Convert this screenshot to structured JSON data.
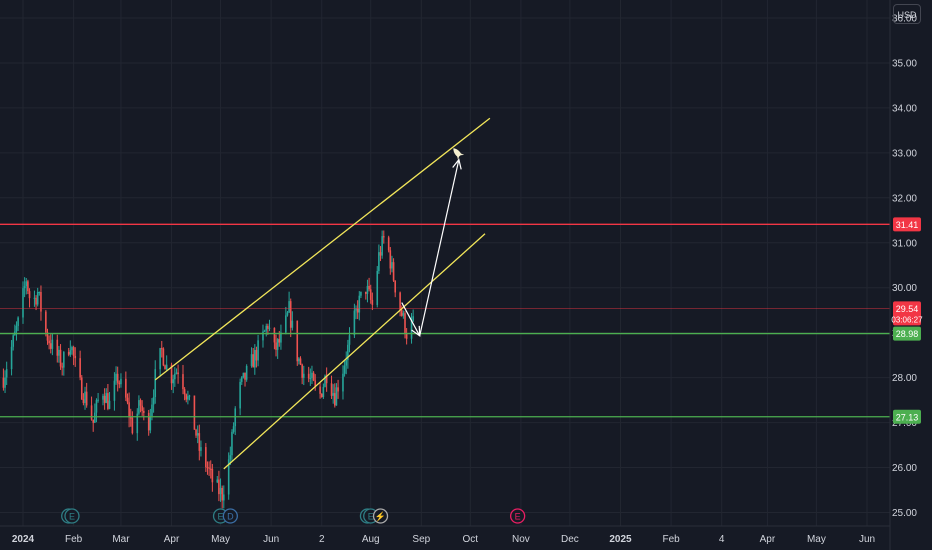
{
  "currency": "USD",
  "colors": {
    "background": "#161a25",
    "grid": "#222631",
    "up": "#26a69a",
    "down": "#ef5350",
    "trendline": "#f2e65a",
    "resistance": "#f23645",
    "support": "#4caf50",
    "arrow": "#ffffff"
  },
  "chart_data": {
    "type": "candlestick",
    "y_axis": {
      "min": 24.7,
      "max": 36.4,
      "ticks": [
        "25.00",
        "26.00",
        "27.00",
        "28.00",
        "29.00",
        "30.00",
        "31.00",
        "32.00",
        "33.00",
        "34.00",
        "35.00",
        "36.00"
      ]
    },
    "x_axis": {
      "ticks": [
        {
          "label": "2024",
          "bold": true,
          "date": "2024-01-01"
        },
        {
          "label": "Feb",
          "date": "2024-02-01"
        },
        {
          "label": "Mar",
          "date": "2024-03-01"
        },
        {
          "label": "Apr",
          "date": "2024-04-01"
        },
        {
          "label": "May",
          "date": "2024-05-01"
        },
        {
          "label": "Jun",
          "date": "2024-06-01"
        },
        {
          "label": "2",
          "date": "2024-07-02"
        },
        {
          "label": "Aug",
          "date": "2024-08-01"
        },
        {
          "label": "Sep",
          "date": "2024-09-01"
        },
        {
          "label": "Oct",
          "date": "2024-10-01"
        },
        {
          "label": "Nov",
          "date": "2024-11-01"
        },
        {
          "label": "Dec",
          "date": "2024-12-01"
        },
        {
          "label": "2025",
          "bold": true,
          "date": "2025-01-01"
        },
        {
          "label": "Feb",
          "date": "2025-02-01"
        },
        {
          "label": "4",
          "date": "2025-03-04"
        },
        {
          "label": "Apr",
          "date": "2025-04-01"
        },
        {
          "label": "May",
          "date": "2025-05-01"
        },
        {
          "label": "Jun",
          "date": "2025-06-01"
        }
      ]
    },
    "price_path": [
      [
        "2023-12-20",
        28.0
      ],
      [
        "2023-12-29",
        29.2
      ],
      [
        "2024-01-03",
        30.2
      ],
      [
        "2024-01-06",
        29.6
      ],
      [
        "2024-01-10",
        29.9
      ],
      [
        "2024-01-15",
        29.0
      ],
      [
        "2024-01-20",
        28.6
      ],
      [
        "2024-01-25",
        28.3
      ],
      [
        "2024-01-30",
        28.8
      ],
      [
        "2024-02-04",
        27.9
      ],
      [
        "2024-02-09",
        27.5
      ],
      [
        "2024-02-13",
        27.0
      ],
      [
        "2024-02-18",
        27.8
      ],
      [
        "2024-02-23",
        27.4
      ],
      [
        "2024-02-28",
        28.0
      ],
      [
        "2024-03-04",
        27.5
      ],
      [
        "2024-03-08",
        26.9
      ],
      [
        "2024-03-13",
        27.4
      ],
      [
        "2024-03-17",
        26.8
      ],
      [
        "2024-03-22",
        28.0
      ],
      [
        "2024-03-26",
        28.6
      ],
      [
        "2024-03-31",
        28.0
      ],
      [
        "2024-04-05",
        28.2
      ],
      [
        "2024-04-09",
        27.8
      ],
      [
        "2024-04-14",
        27.1
      ],
      [
        "2024-04-18",
        26.4
      ],
      [
        "2024-04-23",
        26.0
      ],
      [
        "2024-04-27",
        25.6
      ],
      [
        "2024-05-02",
        25.4
      ],
      [
        "2024-05-07",
        26.3
      ],
      [
        "2024-05-11",
        27.6
      ],
      [
        "2024-05-16",
        28.0
      ],
      [
        "2024-05-21",
        28.4
      ],
      [
        "2024-05-25",
        28.7
      ],
      [
        "2024-05-30",
        29.2
      ],
      [
        "2024-06-03",
        28.6
      ],
      [
        "2024-06-08",
        28.9
      ],
      [
        "2024-06-12",
        29.5
      ],
      [
        "2024-06-17",
        28.5
      ],
      [
        "2024-06-21",
        28.1
      ],
      [
        "2024-06-26",
        27.9
      ],
      [
        "2024-06-30",
        27.5
      ],
      [
        "2024-07-05",
        28.1
      ],
      [
        "2024-07-10",
        27.6
      ],
      [
        "2024-07-15",
        28.2
      ],
      [
        "2024-07-19",
        28.8
      ],
      [
        "2024-07-24",
        29.6
      ],
      [
        "2024-07-29",
        30.0
      ],
      [
        "2024-08-02",
        29.6
      ],
      [
        "2024-08-06",
        30.7
      ],
      [
        "2024-08-10",
        31.2
      ],
      [
        "2024-08-14",
        30.4
      ],
      [
        "2024-08-18",
        29.7
      ],
      [
        "2024-08-23",
        29.0
      ],
      [
        "2024-08-27",
        29.2
      ]
    ],
    "drawings": {
      "horizontal_lines": [
        {
          "name": "resistance",
          "price": 31.41,
          "label": "31.41"
        },
        {
          "name": "support-upper",
          "price": 28.98,
          "label": "28.98"
        },
        {
          "name": "support-lower",
          "price": 27.13,
          "label": "27.13"
        }
      ],
      "channel_upper": [
        [
          "2024-03-22",
          27.95
        ],
        [
          "2024-10-13",
          33.77
        ]
      ],
      "channel_lower": [
        [
          "2024-05-03",
          25.97
        ],
        [
          "2024-10-10",
          31.2
        ]
      ],
      "arrow_down": [
        [
          "2024-08-20",
          29.67
        ],
        [
          "2024-08-31",
          28.93
        ]
      ],
      "arrow_up": [
        [
          "2024-08-31",
          28.93
        ],
        [
          "2024-09-24",
          32.85
        ]
      ],
      "rocket_marker": [
        "2024-09-23",
        33.0
      ]
    },
    "last_price": {
      "price": 29.54,
      "label": "29.54",
      "countdown": "03:06:27"
    },
    "event_markers": [
      {
        "date": "2024-01-29",
        "letter": "D",
        "color": "#2e7d84"
      },
      {
        "date": "2024-01-31",
        "letter": "E",
        "color": "#2e7d84"
      },
      {
        "date": "2024-05-01",
        "letter": "E",
        "color": "#2e7d84"
      },
      {
        "date": "2024-05-07",
        "letter": "D",
        "color": "#3b6ea5"
      },
      {
        "date": "2024-07-30",
        "letter": "D",
        "color": "#2e7d84"
      },
      {
        "date": "2024-08-01",
        "letter": "E",
        "color": "#2e7d84"
      },
      {
        "date": "2024-08-07",
        "letter": "⚡",
        "color": "#aaaaaa"
      },
      {
        "date": "2024-10-30",
        "letter": "E",
        "color": "#e91e63"
      }
    ]
  }
}
